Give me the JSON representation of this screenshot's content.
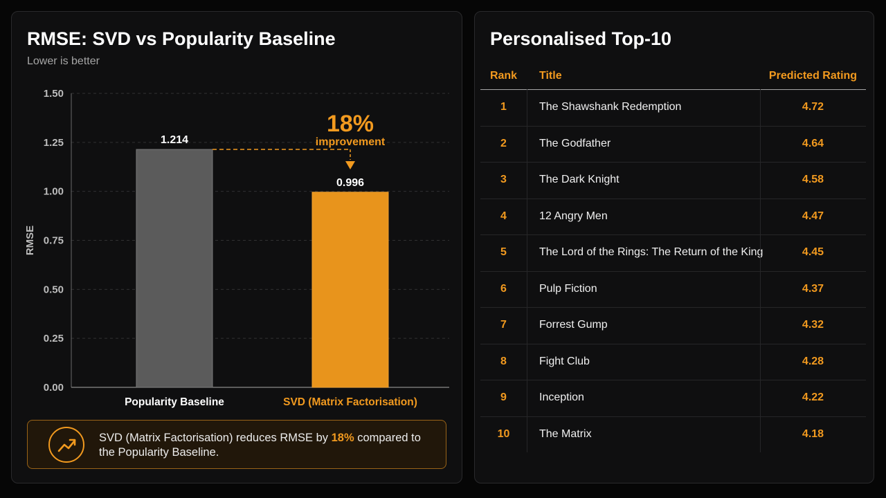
{
  "chart_panel": {
    "title": "RMSE: SVD vs Popularity Baseline",
    "subtitle": "Lower is better",
    "improvement_pct": "18%",
    "improvement_label": "improvement",
    "summary": {
      "text_before": "SVD (Matrix Factorisation) reduces RMSE by ",
      "highlight": "18%",
      "text_after": " compared to the Popularity Baseline."
    }
  },
  "chart_data": {
    "type": "bar",
    "categories": [
      "Popularity Baseline",
      "SVD (Matrix Factorisation)"
    ],
    "values": [
      1.214,
      0.996
    ],
    "value_labels": [
      "1.214",
      "0.996"
    ],
    "ylabel": "RMSE",
    "ylim": [
      0,
      1.5
    ],
    "yticks": [
      "0.00",
      "0.25",
      "0.50",
      "0.75",
      "1.00",
      "1.25",
      "1.50"
    ],
    "grid": true,
    "colors": [
      "#5b5b5b",
      "#e8941c"
    ]
  },
  "table_panel": {
    "title": "Personalised Top-10",
    "headers": {
      "rank": "Rank",
      "title": "Title",
      "rating": "Predicted Rating"
    },
    "rows": [
      {
        "rank": "1",
        "title": "The Shawshank Redemption",
        "rating": "4.72"
      },
      {
        "rank": "2",
        "title": "The Godfather",
        "rating": "4.64"
      },
      {
        "rank": "3",
        "title": "The Dark Knight",
        "rating": "4.58"
      },
      {
        "rank": "4",
        "title": "12 Angry Men",
        "rating": "4.47"
      },
      {
        "rank": "5",
        "title": "The Lord of the Rings: The Return of the King",
        "rating": "4.45"
      },
      {
        "rank": "6",
        "title": "Pulp Fiction",
        "rating": "4.37"
      },
      {
        "rank": "7",
        "title": "Forrest Gump",
        "rating": "4.32"
      },
      {
        "rank": "8",
        "title": "Fight Club",
        "rating": "4.28"
      },
      {
        "rank": "9",
        "title": "Inception",
        "rating": "4.22"
      },
      {
        "rank": "10",
        "title": "The Matrix",
        "rating": "4.18"
      }
    ]
  },
  "colors": {
    "accent": "#f29a1f",
    "baseline_bar": "#5b5b5b",
    "svd_bar": "#e8941c"
  },
  "icons": {
    "callout": "trending-up-icon"
  }
}
